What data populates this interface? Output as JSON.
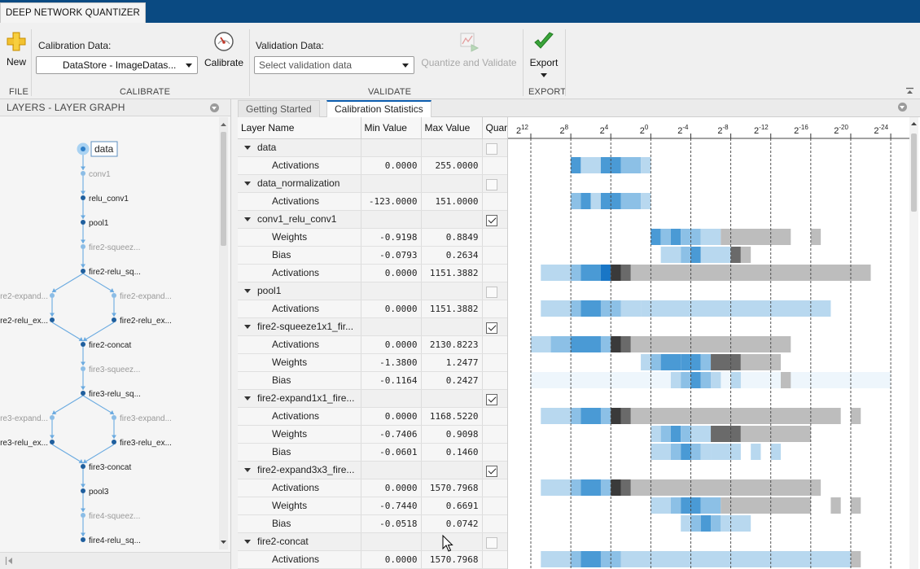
{
  "app": {
    "title": "DEEP NETWORK QUANTIZER"
  },
  "toolstrip": {
    "file": {
      "group_label": "FILE",
      "new_label": "New"
    },
    "calibrate": {
      "group_label": "CALIBRATE",
      "data_label": "Calibration Data:",
      "data_value": "DataStore - ImageDatas...",
      "button_label": "Calibrate"
    },
    "validate": {
      "group_label": "VALIDATE",
      "data_label": "Validation Data:",
      "data_placeholder": "Select validation data",
      "button_label": "Quantize and Validate"
    },
    "export": {
      "group_label": "EXPORT",
      "button_label": "Export"
    }
  },
  "layers_panel": {
    "title": "LAYERS - LAYER GRAPH",
    "nodes": [
      {
        "label": "data",
        "style": "selected"
      },
      {
        "label": "conv1",
        "style": "faded"
      },
      {
        "label": "relu_conv1",
        "style": "normal"
      },
      {
        "label": "pool1",
        "style": "normal"
      },
      {
        "label": "fire2-squeez...",
        "style": "faded"
      },
      {
        "label": "fire2-relu_sq...",
        "style": "normal"
      },
      {
        "label": "fire2-expand...",
        "style": "faded"
      },
      {
        "label": "fire2-expand...",
        "style": "faded"
      },
      {
        "label": "fire2-relu_ex...",
        "style": "normal"
      },
      {
        "label": "fire2-relu_ex...",
        "style": "normal"
      },
      {
        "label": "fire2-concat",
        "style": "normal"
      },
      {
        "label": "fire3-squeez...",
        "style": "faded"
      },
      {
        "label": "fire3-relu_sq...",
        "style": "normal"
      },
      {
        "label": "fire3-expand...",
        "style": "faded"
      },
      {
        "label": "fire3-expand...",
        "style": "faded"
      },
      {
        "label": "fire3-relu_ex...",
        "style": "normal"
      },
      {
        "label": "fire3-relu_ex...",
        "style": "normal"
      },
      {
        "label": "fire3-concat",
        "style": "normal"
      },
      {
        "label": "pool3",
        "style": "normal"
      },
      {
        "label": "fire4-squeez...",
        "style": "faded"
      },
      {
        "label": "fire4-relu_sq...",
        "style": "normal"
      }
    ]
  },
  "tabs": [
    {
      "label": "Getting Started",
      "active": false
    },
    {
      "label": "Calibration Statistics",
      "active": true
    }
  ],
  "table": {
    "columns": [
      "Layer Name",
      "Min Value",
      "Max Value",
      "Quantize"
    ],
    "rows": [
      {
        "kind": "layer",
        "name": "data",
        "checked": false
      },
      {
        "kind": "stat",
        "name": "Activations",
        "min": "0.0000",
        "max": "255.0000"
      },
      {
        "kind": "layer",
        "name": "data_normalization",
        "checked": false
      },
      {
        "kind": "stat",
        "name": "Activations",
        "min": "-123.0000",
        "max": "151.0000"
      },
      {
        "kind": "layer",
        "name": "conv1_relu_conv1",
        "checked": true
      },
      {
        "kind": "stat",
        "name": "Weights",
        "min": "-0.9198",
        "max": "0.8849"
      },
      {
        "kind": "stat",
        "name": "Bias",
        "min": "-0.0793",
        "max": "0.2634"
      },
      {
        "kind": "stat",
        "name": "Activations",
        "min": "0.0000",
        "max": "1151.3882"
      },
      {
        "kind": "layer",
        "name": "pool1",
        "checked": false
      },
      {
        "kind": "stat",
        "name": "Activations",
        "min": "0.0000",
        "max": "1151.3882"
      },
      {
        "kind": "layer",
        "name": "fire2-squeeze1x1_fir...",
        "checked": true
      },
      {
        "kind": "stat",
        "name": "Activations",
        "min": "0.0000",
        "max": "2130.8223"
      },
      {
        "kind": "stat",
        "name": "Weights",
        "min": "-1.3800",
        "max": "1.2477"
      },
      {
        "kind": "stat",
        "name": "Bias",
        "min": "-0.1164",
        "max": "0.2427"
      },
      {
        "kind": "layer",
        "name": "fire2-expand1x1_fire...",
        "checked": true
      },
      {
        "kind": "stat",
        "name": "Activations",
        "min": "0.0000",
        "max": "1168.5220"
      },
      {
        "kind": "stat",
        "name": "Weights",
        "min": "-0.7406",
        "max": "0.9098"
      },
      {
        "kind": "stat",
        "name": "Bias",
        "min": "-0.0601",
        "max": "0.1460"
      },
      {
        "kind": "layer",
        "name": "fire2-expand3x3_fire...",
        "checked": true
      },
      {
        "kind": "stat",
        "name": "Activations",
        "min": "0.0000",
        "max": "1570.7968"
      },
      {
        "kind": "stat",
        "name": "Weights",
        "min": "-0.7440",
        "max": "0.6691"
      },
      {
        "kind": "stat",
        "name": "Bias",
        "min": "-0.0518",
        "max": "0.0742"
      },
      {
        "kind": "layer",
        "name": "fire2-concat",
        "checked": false
      },
      {
        "kind": "stat",
        "name": "Activations",
        "min": "0.0000",
        "max": "1570.7968"
      }
    ]
  },
  "histogram": {
    "axis_ticks": [
      {
        "base": "2",
        "exp": "12"
      },
      {
        "base": "2",
        "exp": "8"
      },
      {
        "base": "2",
        "exp": "4"
      },
      {
        "base": "2",
        "exp": "0"
      },
      {
        "base": "2",
        "exp": "-4"
      },
      {
        "base": "2",
        "exp": "-8"
      },
      {
        "base": "2",
        "exp": "-12"
      },
      {
        "base": "2",
        "exp": "-16"
      },
      {
        "base": "2",
        "exp": "-20"
      },
      {
        "base": "2",
        "exp": "-24"
      }
    ],
    "rows": [
      {
        "row": 1,
        "bins": [
          [
            8,
            7,
            3
          ],
          [
            7,
            5,
            1
          ],
          [
            5,
            3,
            3
          ],
          [
            3,
            1,
            2
          ],
          [
            1,
            0,
            1
          ]
        ]
      },
      {
        "row": 3,
        "bins": [
          [
            8,
            7,
            2
          ],
          [
            7,
            6,
            3
          ],
          [
            6,
            5,
            1
          ],
          [
            5,
            3,
            3
          ],
          [
            3,
            1,
            2
          ],
          [
            1,
            0,
            1
          ]
        ]
      },
      {
        "row": 5,
        "bins": [
          [
            0,
            -1,
            3
          ],
          [
            -1,
            -2,
            2
          ],
          [
            -2,
            -3,
            3
          ],
          [
            -3,
            -5,
            2
          ],
          [
            -5,
            -7,
            1
          ],
          [
            -7,
            -14,
            7
          ],
          [
            -16,
            -17,
            7
          ]
        ]
      },
      {
        "row": 6,
        "bins": [
          [
            -1,
            -3,
            1
          ],
          [
            -3,
            -4,
            2
          ],
          [
            -4,
            -5,
            3
          ],
          [
            -5,
            -8,
            1
          ],
          [
            -8,
            -9,
            6
          ],
          [
            -9,
            -10,
            7
          ]
        ]
      },
      {
        "row": 7,
        "bins": [
          [
            11,
            8,
            1
          ],
          [
            8,
            7,
            2
          ],
          [
            7,
            5,
            3
          ],
          [
            5,
            4,
            4
          ],
          [
            4,
            3,
            5
          ],
          [
            3,
            2,
            6
          ],
          [
            2,
            0,
            7
          ],
          [
            0,
            -22,
            7
          ]
        ]
      },
      {
        "row": 9,
        "bins": [
          [
            11,
            8,
            1
          ],
          [
            8,
            7,
            2
          ],
          [
            7,
            5,
            3
          ],
          [
            5,
            3,
            2
          ],
          [
            3,
            1,
            1
          ],
          [
            1,
            -18,
            1
          ]
        ]
      },
      {
        "row": 11,
        "bins": [
          [
            12,
            10,
            1
          ],
          [
            10,
            8,
            2
          ],
          [
            8,
            5,
            3
          ],
          [
            5,
            4,
            2
          ],
          [
            4,
            3,
            5
          ],
          [
            3,
            2,
            6
          ],
          [
            2,
            -14,
            7
          ]
        ]
      },
      {
        "row": 12,
        "bins": [
          [
            1,
            0,
            1
          ],
          [
            0,
            -1,
            2
          ],
          [
            -1,
            -3,
            3
          ],
          [
            -3,
            -5,
            3
          ],
          [
            -5,
            -6,
            2
          ],
          [
            -6,
            -9,
            6
          ],
          [
            -9,
            -13,
            7
          ]
        ]
      },
      {
        "row": 13,
        "bins": [
          [
            12,
            -24,
            0
          ],
          [
            -2,
            -3,
            1
          ],
          [
            -3,
            -4,
            2
          ],
          [
            -4,
            -5,
            3
          ],
          [
            -5,
            -6,
            2
          ],
          [
            -6,
            -7,
            1
          ],
          [
            -8,
            -9,
            1
          ],
          [
            -13,
            -14,
            7
          ]
        ]
      },
      {
        "row": 15,
        "bins": [
          [
            11,
            8,
            1
          ],
          [
            8,
            7,
            2
          ],
          [
            7,
            5,
            3
          ],
          [
            5,
            4,
            2
          ],
          [
            4,
            3,
            5
          ],
          [
            3,
            2,
            6
          ],
          [
            2,
            -19,
            7
          ],
          [
            -20,
            -21,
            7
          ]
        ]
      },
      {
        "row": 16,
        "bins": [
          [
            0,
            -1,
            1
          ],
          [
            -1,
            -2,
            2
          ],
          [
            -2,
            -3,
            3
          ],
          [
            -3,
            -4,
            2
          ],
          [
            -4,
            -6,
            1
          ],
          [
            -6,
            -9,
            6
          ],
          [
            -9,
            -16,
            7
          ]
        ]
      },
      {
        "row": 17,
        "bins": [
          [
            0,
            -2,
            1
          ],
          [
            -2,
            -3,
            2
          ],
          [
            -3,
            -4,
            3
          ],
          [
            -4,
            -5,
            2
          ],
          [
            -5,
            -6,
            1
          ],
          [
            -6,
            -9,
            1
          ],
          [
            -10,
            -11,
            1
          ],
          [
            -12,
            -13,
            1
          ]
        ]
      },
      {
        "row": 19,
        "bins": [
          [
            11,
            8,
            1
          ],
          [
            8,
            7,
            2
          ],
          [
            7,
            5,
            3
          ],
          [
            5,
            4,
            2
          ],
          [
            4,
            3,
            5
          ],
          [
            3,
            2,
            6
          ],
          [
            2,
            -17,
            7
          ]
        ]
      },
      {
        "row": 20,
        "bins": [
          [
            0,
            -2,
            1
          ],
          [
            -2,
            -3,
            2
          ],
          [
            -3,
            -5,
            3
          ],
          [
            -5,
            -7,
            2
          ],
          [
            -7,
            -16,
            7
          ],
          [
            -18,
            -19,
            7
          ],
          [
            -20,
            -21,
            7
          ]
        ]
      },
      {
        "row": 21,
        "bins": [
          [
            -3,
            -4,
            1
          ],
          [
            -4,
            -5,
            2
          ],
          [
            -5,
            -6,
            3
          ],
          [
            -6,
            -7,
            2
          ],
          [
            -7,
            -10,
            1
          ]
        ]
      },
      {
        "row": 23,
        "bins": [
          [
            11,
            8,
            1
          ],
          [
            8,
            7,
            2
          ],
          [
            7,
            5,
            3
          ],
          [
            5,
            3,
            2
          ],
          [
            3,
            -20,
            1
          ],
          [
            -20,
            -21,
            7
          ]
        ]
      }
    ],
    "colors": [
      "#eef6fc",
      "#b8d8ef",
      "#8cc0e6",
      "#4a9ad5",
      "#1976c6",
      "#3a3a3a",
      "#6a6a6a",
      "#bdbdbd"
    ]
  }
}
